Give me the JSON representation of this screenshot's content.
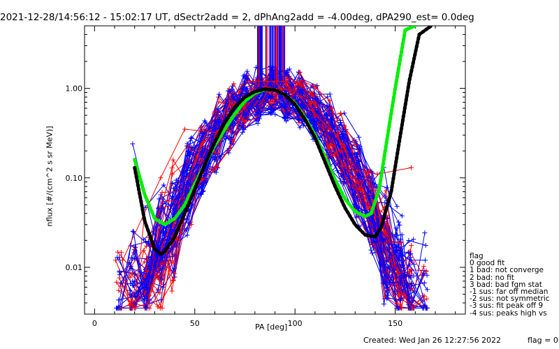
{
  "title": "2021-12-28/14:56:12 - 15:02:17 UT, dSectr2add = 2, dPhAng2add = -4.00deg, dPA290_est=   0.0deg",
  "footer": {
    "created": "Created: Wed Jan 26 12:27:56 2022",
    "flag_note": "flag = 0"
  },
  "legend": {
    "title": "flag",
    "items": [
      " 0 good fit",
      " 1 bad: not converge",
      " 2 bad: no fit",
      " 3 bad: bad fgm stat",
      "-1 sus: far off median",
      "-2 sus: not symmetric",
      "-3 sus: fit peak off 9",
      "-4 sus: peaks high vs"
    ]
  },
  "colors": {
    "red": "#ff0000",
    "blue": "#0000ff",
    "green": "#00ee00",
    "black": "#000000"
  },
  "chart_data": {
    "type": "line",
    "xlabel": "PA [deg]",
    "ylabel": "nflux [#/(cm^2 s sr MeV)]",
    "xlim": [
      -5,
      185
    ],
    "ylim": [
      0.003,
      5
    ],
    "yscale": "log",
    "xticks": [
      0,
      50,
      100,
      150
    ],
    "yticks": [
      {
        "value": 0.01,
        "label": "0.01"
      },
      {
        "value": 0.1,
        "label": "0.10"
      },
      {
        "value": 1,
        "label": "1.00"
      }
    ],
    "series": [
      {
        "style": "data-blue",
        "values_by_x": {
          "x": [
            19,
            33,
            50,
            61,
            70,
            80,
            90,
            100,
            110,
            121,
            131,
            141,
            150,
            158,
            165
          ],
          "y": [
            0.24,
            0.012,
            0.22,
            0.35,
            0.55,
            0.85,
            0.97,
            0.8,
            0.35,
            0.12,
            0.06,
            0.03,
            0.015,
            0.012,
            0.012
          ]
        }
      },
      {
        "style": "data-red",
        "values_by_x": {
          "x": [
            14,
            33,
            45,
            61,
            75,
            85,
            90,
            100,
            110,
            121,
            131,
            141,
            158
          ],
          "y": [
            0.012,
            0.1,
            0.35,
            0.32,
            0.6,
            1.05,
            1.0,
            0.95,
            0.5,
            0.3,
            0.12,
            0.11,
            0.13
          ]
        }
      },
      {
        "style": "fit-green",
        "values_by_x": {
          "x": [
            20,
            25,
            30,
            35,
            40,
            45,
            50,
            55,
            60,
            65,
            70,
            75,
            80,
            85,
            90,
            95,
            100,
            105,
            110,
            115,
            120,
            125,
            130,
            135,
            138,
            142,
            145,
            150,
            155,
            160
          ],
          "y": [
            0.16,
            0.065,
            0.035,
            0.03,
            0.035,
            0.05,
            0.085,
            0.14,
            0.23,
            0.35,
            0.52,
            0.72,
            0.88,
            0.97,
            0.96,
            0.85,
            0.68,
            0.47,
            0.3,
            0.17,
            0.095,
            0.058,
            0.042,
            0.037,
            0.04,
            0.075,
            0.2,
            1.0,
            4.5,
            5.0
          ]
        }
      },
      {
        "style": "fit-black",
        "values_by_x": {
          "x": [
            20,
            25,
            30,
            33,
            35,
            40,
            45,
            50,
            55,
            60,
            65,
            70,
            75,
            80,
            85,
            90,
            95,
            100,
            105,
            110,
            115,
            120,
            125,
            130,
            135,
            140,
            143,
            148,
            152,
            157,
            162,
            168
          ],
          "y": [
            0.13,
            0.033,
            0.016,
            0.014,
            0.015,
            0.022,
            0.04,
            0.075,
            0.14,
            0.25,
            0.42,
            0.62,
            0.8,
            0.92,
            0.98,
            0.96,
            0.85,
            0.66,
            0.45,
            0.28,
            0.15,
            0.08,
            0.046,
            0.03,
            0.023,
            0.022,
            0.028,
            0.07,
            0.25,
            1.2,
            4.0,
            5.0
          ]
        }
      }
    ]
  }
}
